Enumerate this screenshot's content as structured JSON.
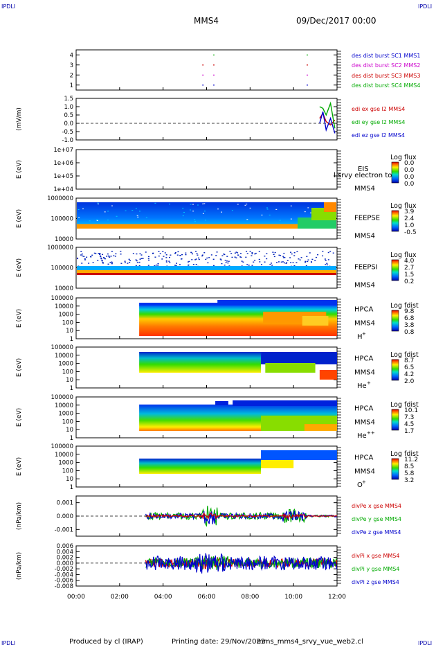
{
  "header": {
    "mission": "MMS4",
    "date": "09/Dec/2017 00:00",
    "corner": "IPDLI"
  },
  "footer": {
    "produced_by": "Produced by cl (IRAP)",
    "printing_date": "Printing date: 29/Nov/2023",
    "file": "mms_mms4_srvy_vue_web2.cl"
  },
  "time_axis": {
    "ticks": [
      "00:00",
      "02:00",
      "04:00",
      "06:00",
      "08:00",
      "10:00",
      "12:00"
    ],
    "range_hours": [
      0,
      12
    ]
  },
  "chart_data": [
    {
      "type": "scatter",
      "panel": "burst",
      "yticks": [
        "1",
        "2",
        "3",
        "4"
      ],
      "ylim": [
        0.5,
        4.5
      ],
      "series": [
        {
          "name": "des dist burst SC1 MMS1",
          "color": "#0000cc",
          "y": 1,
          "x_hours": [
            5.8,
            6.3,
            10.6
          ]
        },
        {
          "name": "des dist burst SC2 MMS2",
          "color": "#cc00cc",
          "y": 2,
          "x_hours": [
            5.8,
            6.3,
            10.6
          ]
        },
        {
          "name": "des dist burst SC3 MMS3",
          "color": "#cc0000",
          "y": 3,
          "x_hours": [
            5.8,
            6.3,
            10.6
          ]
        },
        {
          "name": "des dist burst SC4 MMS4",
          "color": "#00aa00",
          "y": 4,
          "x_hours": [
            6.3,
            10.6
          ]
        }
      ]
    },
    {
      "type": "line",
      "panel": "edi",
      "ylabel": "(mV/m)",
      "ylim": [
        -1.0,
        1.5
      ],
      "yticks": [
        "1.5",
        "1.0",
        "0.5",
        "0.0",
        "-0.5",
        "-1.0"
      ],
      "series": [
        {
          "name": "edi ex gse l2 MMS4",
          "color": "#cc0000",
          "x": [
            11.2,
            11.35,
            11.5,
            11.7,
            11.9
          ],
          "values": [
            0.3,
            0.6,
            0.1,
            -0.1,
            0.2
          ]
        },
        {
          "name": "edi ey gse l2 MMS4",
          "color": "#00aa00",
          "x": [
            11.2,
            11.35,
            11.5,
            11.7,
            11.9
          ],
          "values": [
            1.0,
            0.9,
            0.5,
            1.2,
            -0.3
          ]
        },
        {
          "name": "edi ez gse l2 MMS4",
          "color": "#0000cc",
          "x": [
            11.2,
            11.35,
            11.5,
            11.7,
            11.9
          ],
          "values": [
            0.0,
            0.7,
            -0.4,
            0.3,
            -0.6
          ]
        }
      ]
    },
    {
      "type": "heatmap",
      "panel": "eis",
      "ylabel": "E (eV)",
      "yticks": [
        "1e+07",
        "1e+06",
        "1e+05",
        "1e+04"
      ],
      "instrument": "EIS",
      "subtitle": "MMS4",
      "overlay": "l srvy electron to",
      "colorbar": {
        "label": "Log flux",
        "ticks": [
          "0.0",
          "0.0",
          "0.0",
          "0.0"
        ]
      }
    },
    {
      "type": "heatmap",
      "panel": "feepse",
      "ylabel": "E (eV)",
      "yticks": [
        "1000000",
        "100000",
        "10000"
      ],
      "instrument": "FEEPSE",
      "subtitle": "MMS4",
      "colorbar": {
        "label": "Log flux",
        "ticks": [
          "3.9",
          "2.4",
          "1.0",
          "-0.5"
        ]
      }
    },
    {
      "type": "heatmap",
      "panel": "feepsi",
      "ylabel": "E (eV)",
      "yticks": [
        "1000000",
        "100000",
        "10000"
      ],
      "instrument": "FEEPSI",
      "subtitle": "MMS4",
      "colorbar": {
        "label": "Log flux",
        "ticks": [
          "4.0",
          "2.7",
          "1.5",
          "0.2"
        ]
      }
    },
    {
      "type": "heatmap",
      "panel": "hpca_h",
      "ylabel": "E (eV)",
      "yticks": [
        "100000",
        "10000",
        "1000",
        "100",
        "10",
        "1"
      ],
      "instrument": "HPCA",
      "subtitle": "MMS4",
      "species": "H",
      "species_sup": "+",
      "colorbar": {
        "label": "Log fdist",
        "ticks": [
          "9.8",
          "6.8",
          "3.8",
          "0.8"
        ]
      }
    },
    {
      "type": "heatmap",
      "panel": "hpca_he",
      "ylabel": "E (eV)",
      "yticks": [
        "100000",
        "10000",
        "1000",
        "100",
        "10",
        "1"
      ],
      "instrument": "HPCA",
      "subtitle": "MMS4",
      "species": "He",
      "species_sup": "+",
      "colorbar": {
        "label": "Log fdist",
        "ticks": [
          "8.7",
          "6.5",
          "4.2",
          "2.0"
        ]
      }
    },
    {
      "type": "heatmap",
      "panel": "hpca_hepp",
      "ylabel": "E (eV)",
      "yticks": [
        "100000",
        "10000",
        "1000",
        "100",
        "10",
        "1"
      ],
      "instrument": "HPCA",
      "subtitle": "MMS4",
      "species": "He",
      "species_sup": "++",
      "colorbar": {
        "label": "Log fdist",
        "ticks": [
          "10.1",
          "7.3",
          "4.5",
          "1.7"
        ]
      }
    },
    {
      "type": "heatmap",
      "panel": "hpca_o",
      "ylabel": "E (eV)",
      "yticks": [
        "100000",
        "10000",
        "1000",
        "100",
        "10",
        "1"
      ],
      "instrument": "HPCA",
      "subtitle": "MMS4",
      "species": "O",
      "species_sup": "+",
      "colorbar": {
        "label": "Log fdist",
        "ticks": [
          "11.2",
          "8.5",
          "5.8",
          "3.2"
        ]
      }
    },
    {
      "type": "line",
      "panel": "divpe",
      "ylabel": "(nPa/km)",
      "yticks": [
        "0.001",
        "0.000",
        "-0.001"
      ],
      "ylim": [
        -0.0015,
        0.0015
      ],
      "series": [
        {
          "name": "divPe x gse MMS4",
          "color": "#cc0000"
        },
        {
          "name": "divPe y gse MMS4",
          "color": "#00aa00"
        },
        {
          "name": "divPe z gse MMS4",
          "color": "#0000cc"
        }
      ]
    },
    {
      "type": "line",
      "panel": "divpi",
      "ylabel": "(nPa/km)",
      "yticks": [
        "0.006",
        "0.004",
        "0.002",
        "0.000",
        "-0.002",
        "-0.004",
        "-0.006",
        "-0.008"
      ],
      "ylim": [
        -0.008,
        0.006
      ],
      "series": [
        {
          "name": "divPi x gse MMS4",
          "color": "#cc0000"
        },
        {
          "name": "divPi y gse MMS4",
          "color": "#00aa00"
        },
        {
          "name": "divPi z gse MMS4",
          "color": "#0000cc"
        }
      ]
    }
  ]
}
